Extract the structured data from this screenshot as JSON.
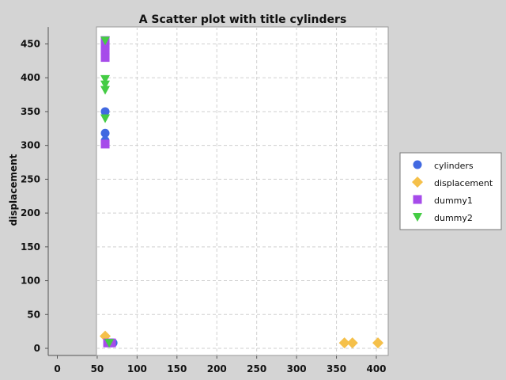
{
  "chart_data": {
    "type": "scatter",
    "title": "A Scatter plot with title cylinders",
    "xlabel": "",
    "ylabel": "displacement",
    "xlim": [
      0,
      420
    ],
    "ylim": [
      -10,
      475
    ],
    "x_ticks": [
      0,
      50,
      100,
      150,
      200,
      250,
      300,
      350,
      400
    ],
    "y_ticks": [
      0,
      50,
      100,
      150,
      200,
      250,
      300,
      350,
      400,
      450
    ],
    "grid": true,
    "legend_position": "right",
    "series": [
      {
        "name": "cylinders",
        "marker": "circle",
        "color": "#4169e1",
        "points": [
          [
            60,
            350
          ],
          [
            60,
            318
          ],
          [
            60,
            307
          ],
          [
            60,
            304
          ],
          [
            68,
            8
          ],
          [
            70,
            8
          ]
        ]
      },
      {
        "name": "displacement",
        "marker": "diamond",
        "color": "#f5c04a",
        "points": [
          [
            60,
            18
          ],
          [
            360,
            8
          ],
          [
            370,
            8
          ],
          [
            402,
            8
          ]
        ]
      },
      {
        "name": "dummy1",
        "marker": "square",
        "color": "#a64bea",
        "points": [
          [
            60,
            455
          ],
          [
            60,
            448
          ],
          [
            60,
            440
          ],
          [
            60,
            430
          ],
          [
            60,
            302
          ],
          [
            63,
            8
          ],
          [
            68,
            8
          ]
        ]
      },
      {
        "name": "dummy2",
        "marker": "triangle",
        "color": "#44cc44",
        "points": [
          [
            60,
            455
          ],
          [
            60,
            398
          ],
          [
            60,
            390
          ],
          [
            60,
            382
          ],
          [
            60,
            340
          ],
          [
            65,
            8
          ]
        ]
      }
    ]
  }
}
